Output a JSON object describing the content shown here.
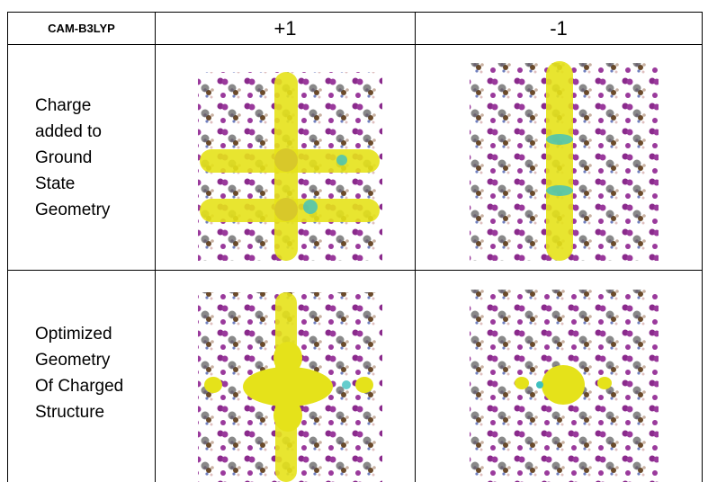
{
  "table": {
    "header": [
      "CAM-B3LYP",
      "+1",
      "-1"
    ],
    "rows": [
      {
        "label": [
          "Charge",
          "added to",
          "Ground",
          "State",
          "Geometry"
        ]
      },
      {
        "label": [
          "Optimized",
          "Geometry",
          "Of Charged",
          "Structure"
        ]
      }
    ]
  }
}
